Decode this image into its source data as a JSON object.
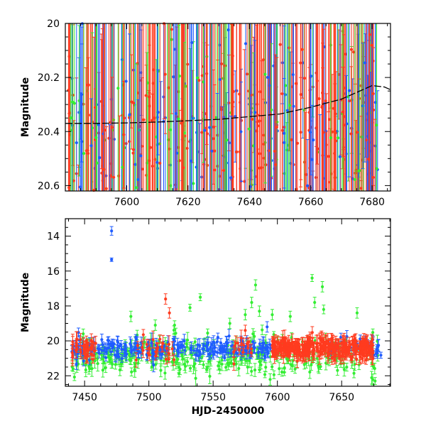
{
  "chart_data": [
    {
      "type": "scatter",
      "panel": "top",
      "title": "",
      "xlabel": "",
      "ylabel": "Magnitude",
      "xlim": [
        7580,
        7686
      ],
      "ylim": [
        20.0,
        20.62
      ],
      "y_inverted": true,
      "x_ticks": [
        7600,
        7620,
        7640,
        7660,
        7680
      ],
      "y_ticks": [
        20,
        20.2,
        20.4,
        20.6
      ],
      "y_tick_labels": [
        "20",
        "20.2",
        "20.4",
        "20.6"
      ],
      "series_colors": {
        "red": "#ff3b1f",
        "green": "#33ee33",
        "blue": "#1f5cff",
        "black": "#000000"
      },
      "model_curve": {
        "color": "#000000",
        "x": [
          7580,
          7590,
          7600,
          7610,
          7620,
          7630,
          7640,
          7650,
          7660,
          7670,
          7676,
          7680,
          7684,
          7686
        ],
        "y": [
          20.37,
          20.37,
          20.368,
          20.365,
          20.36,
          20.355,
          20.345,
          20.335,
          20.31,
          20.28,
          20.25,
          20.23,
          20.235,
          20.245
        ]
      },
      "point_distribution": {
        "note_free": true,
        "x_range": [
          7581,
          7682
        ],
        "y_center": 20.4,
        "dense_gaps": [
          [
            7588,
            7595
          ]
        ],
        "weights": {
          "red": 0.55,
          "green": 0.2,
          "blue": 0.25
        }
      }
    },
    {
      "type": "scatter",
      "panel": "bottom",
      "title": "",
      "xlabel": "HJD-2450000",
      "ylabel": "Magnitude",
      "xlim": [
        7435,
        7688
      ],
      "ylim": [
        13.0,
        22.6
      ],
      "y_inverted": true,
      "x_ticks": [
        7450,
        7500,
        7550,
        7600,
        7650
      ],
      "y_ticks": [
        14,
        16,
        18,
        20,
        22
      ],
      "y_tick_labels": [
        "14",
        "16",
        "18",
        "20",
        "22"
      ],
      "series_colors": {
        "red": "#ff3b1f",
        "green": "#33ee33",
        "blue": "#1f5cff"
      },
      "highlight_points": [
        {
          "color": "blue",
          "x": 7471,
          "y": 13.7,
          "err": 0.25
        },
        {
          "color": "blue",
          "x": 7471,
          "y": 15.35,
          "err": 0.1
        },
        {
          "color": "red",
          "x": 7513,
          "y": 17.6,
          "err": 0.3
        },
        {
          "color": "red",
          "x": 7516,
          "y": 18.4,
          "err": 0.3
        },
        {
          "color": "green",
          "x": 7486,
          "y": 18.6,
          "err": 0.3
        },
        {
          "color": "green",
          "x": 7505,
          "y": 19.1,
          "err": 0.3
        },
        {
          "color": "green",
          "x": 7520,
          "y": 19.1,
          "err": 0.25
        },
        {
          "color": "green",
          "x": 7532,
          "y": 18.1,
          "err": 0.2
        },
        {
          "color": "green",
          "x": 7540,
          "y": 17.5,
          "err": 0.2
        },
        {
          "color": "green",
          "x": 7563,
          "y": 19.0,
          "err": 0.3
        },
        {
          "color": "green",
          "x": 7575,
          "y": 18.5,
          "err": 0.3
        },
        {
          "color": "green",
          "x": 7580,
          "y": 17.8,
          "err": 0.3
        },
        {
          "color": "green",
          "x": 7583,
          "y": 16.8,
          "err": 0.3
        },
        {
          "color": "green",
          "x": 7586,
          "y": 18.3,
          "err": 0.3
        },
        {
          "color": "green",
          "x": 7596,
          "y": 18.5,
          "err": 0.3
        },
        {
          "color": "green",
          "x": 7610,
          "y": 18.6,
          "err": 0.3
        },
        {
          "color": "green",
          "x": 7627,
          "y": 16.4,
          "err": 0.2
        },
        {
          "color": "green",
          "x": 7629,
          "y": 17.8,
          "err": 0.3
        },
        {
          "color": "green",
          "x": 7635,
          "y": 16.9,
          "err": 0.3
        },
        {
          "color": "green",
          "x": 7636,
          "y": 18.2,
          "err": 0.25
        },
        {
          "color": "green",
          "x": 7662,
          "y": 18.4,
          "err": 0.3
        },
        {
          "color": "green",
          "x": 7676,
          "y": 22.3,
          "err": 0.2
        },
        {
          "color": "green",
          "x": 7581,
          "y": 19.6,
          "err": 0.3
        },
        {
          "color": "red",
          "x": 7575,
          "y": 19.4,
          "err": 0.3
        },
        {
          "color": "blue",
          "x": 7592,
          "y": 19.2,
          "err": 0.3
        }
      ]
    }
  ]
}
